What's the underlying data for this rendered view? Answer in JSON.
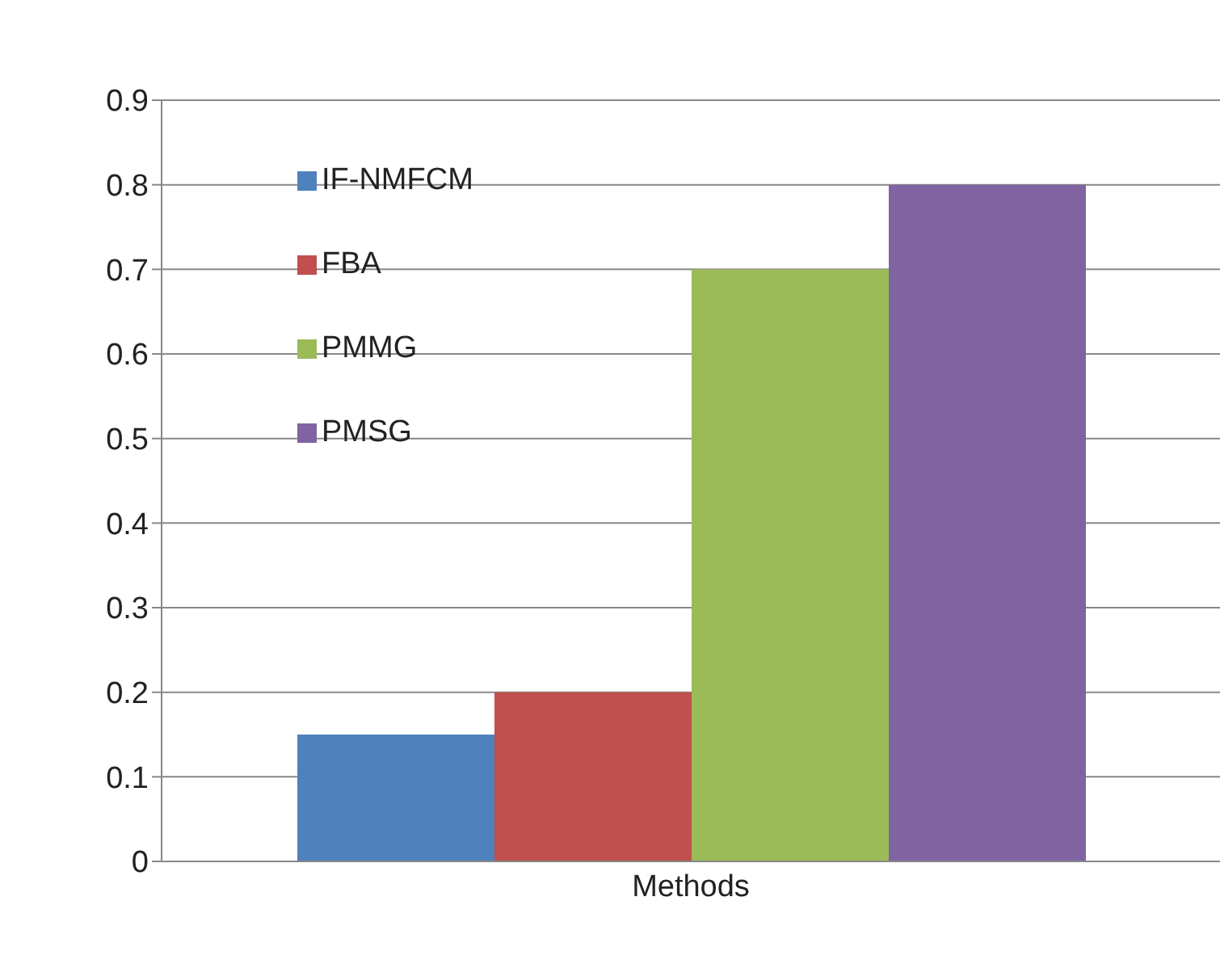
{
  "chart_data": {
    "type": "bar",
    "categories": [
      "Methods"
    ],
    "series": [
      {
        "name": "IF-NMFCM",
        "color": "#4f81bd",
        "values": [
          0.15
        ]
      },
      {
        "name": "FBA",
        "color": "#c0504d",
        "values": [
          0.2
        ]
      },
      {
        "name": "PMMG",
        "color": "#9bbb59",
        "values": [
          0.7
        ]
      },
      {
        "name": "PMSG",
        "color": "#8064a2",
        "values": [
          0.8
        ]
      }
    ],
    "ylim": [
      0,
      0.9
    ],
    "yticks": [
      0,
      0.1,
      0.2,
      0.3,
      0.4,
      0.5,
      0.6,
      0.7,
      0.8,
      0.9
    ],
    "grid": "y",
    "legend": "top left"
  }
}
